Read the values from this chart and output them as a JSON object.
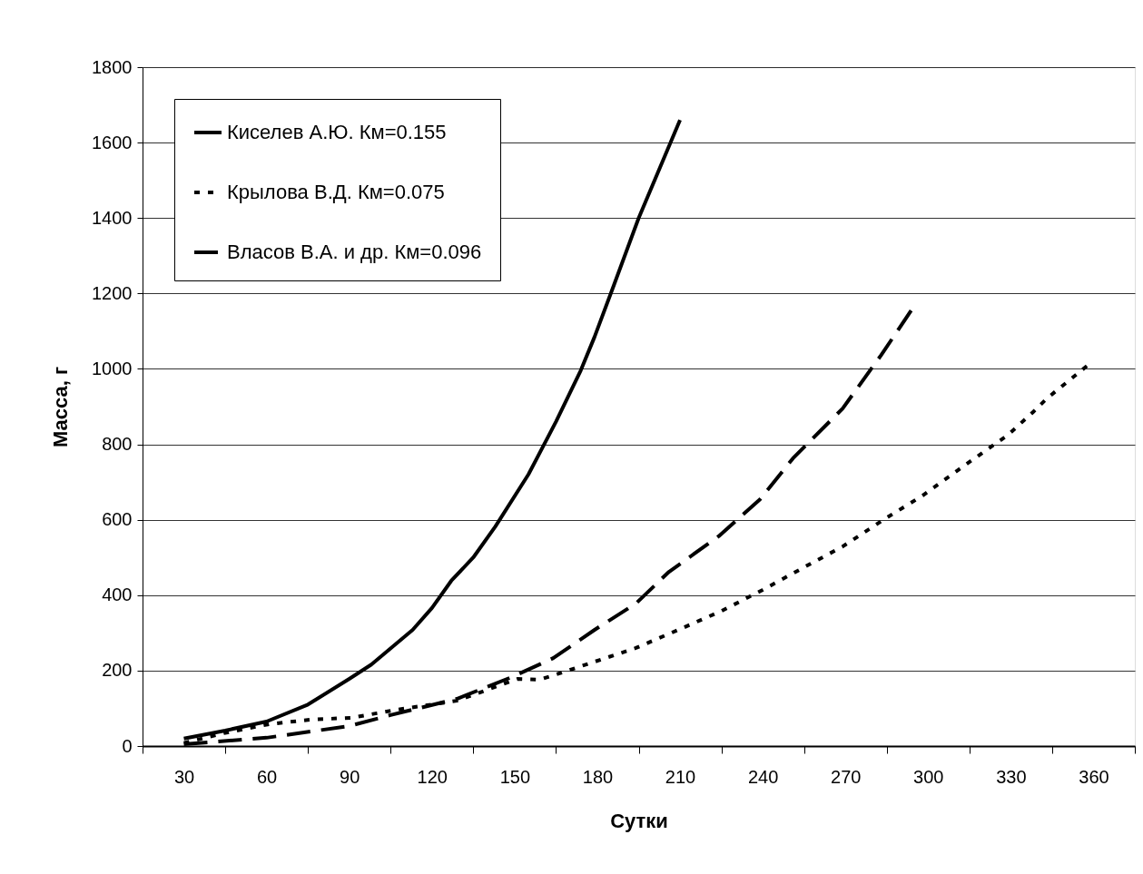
{
  "chart_data": {
    "type": "line",
    "xlabel": "Сутки",
    "ylabel": "Масса, г",
    "xlim": [
      15,
      375
    ],
    "xticks": [
      {
        "value": 15,
        "label": null
      },
      30,
      {
        "value": 45,
        "label": null
      },
      60,
      {
        "value": 75,
        "label": null
      },
      90,
      {
        "value": 105,
        "label": null
      },
      120,
      {
        "value": 135,
        "label": null
      },
      150,
      {
        "value": 165,
        "label": null
      },
      180,
      {
        "value": 195,
        "label": null
      },
      210,
      {
        "value": 225,
        "label": null
      },
      240,
      {
        "value": 255,
        "label": null
      },
      270,
      {
        "value": 285,
        "label": null
      },
      300,
      {
        "value": 315,
        "label": null
      },
      330,
      {
        "value": 345,
        "label": null
      },
      360,
      {
        "value": 375,
        "label": null
      }
    ],
    "ylim": [
      0,
      1800
    ],
    "yticks": [
      0,
      200,
      400,
      600,
      800,
      1000,
      1200,
      1400,
      1600,
      1800
    ],
    "grid": "y",
    "legend": "top left",
    "marker": "none",
    "series": [
      {
        "name": "Киселев А.Ю. Км=0.155",
        "color": "#000000",
        "line_style": "solid",
        "x": [
          30,
          45,
          60,
          75,
          90,
          98,
          113,
          120,
          127,
          135,
          143,
          155,
          165,
          174,
          179,
          186,
          195,
          210
        ],
        "values": [
          20,
          41,
          65,
          110,
          178,
          216,
          308,
          366,
          438,
          500,
          582,
          720,
          860,
          996,
          1085,
          1222,
          1400,
          1660
        ]
      },
      {
        "name": "Крылова В.Д. Км=0.075",
        "color": "#000000",
        "line_style": "dotted",
        "x": [
          30,
          45,
          61,
          76,
          91,
          100,
          107,
          129,
          151,
          159,
          166,
          194,
          210,
          225,
          240,
          255,
          269,
          284,
          298,
          314,
          329,
          338,
          343,
          358
        ],
        "values": [
          8,
          35,
          58,
          70,
          75,
          87,
          96,
          120,
          178,
          176,
          192,
          260,
          310,
          358,
          414,
          474,
          529,
          601,
          664,
          748,
          825,
          885,
          921,
          1010
        ]
      },
      {
        "name": "Власов В.А. и др. Км=0.096",
        "color": "#000000",
        "line_style": "dashed",
        "x": [
          30,
          60,
          90,
          105,
          129,
          149,
          164,
          179,
          194,
          206,
          224,
          239,
          251,
          269,
          283,
          295
        ],
        "values": [
          5,
          22,
          53,
          82,
          125,
          183,
          233,
          308,
          378,
          462,
          556,
          654,
          763,
          895,
          1037,
          1167
        ]
      }
    ]
  }
}
